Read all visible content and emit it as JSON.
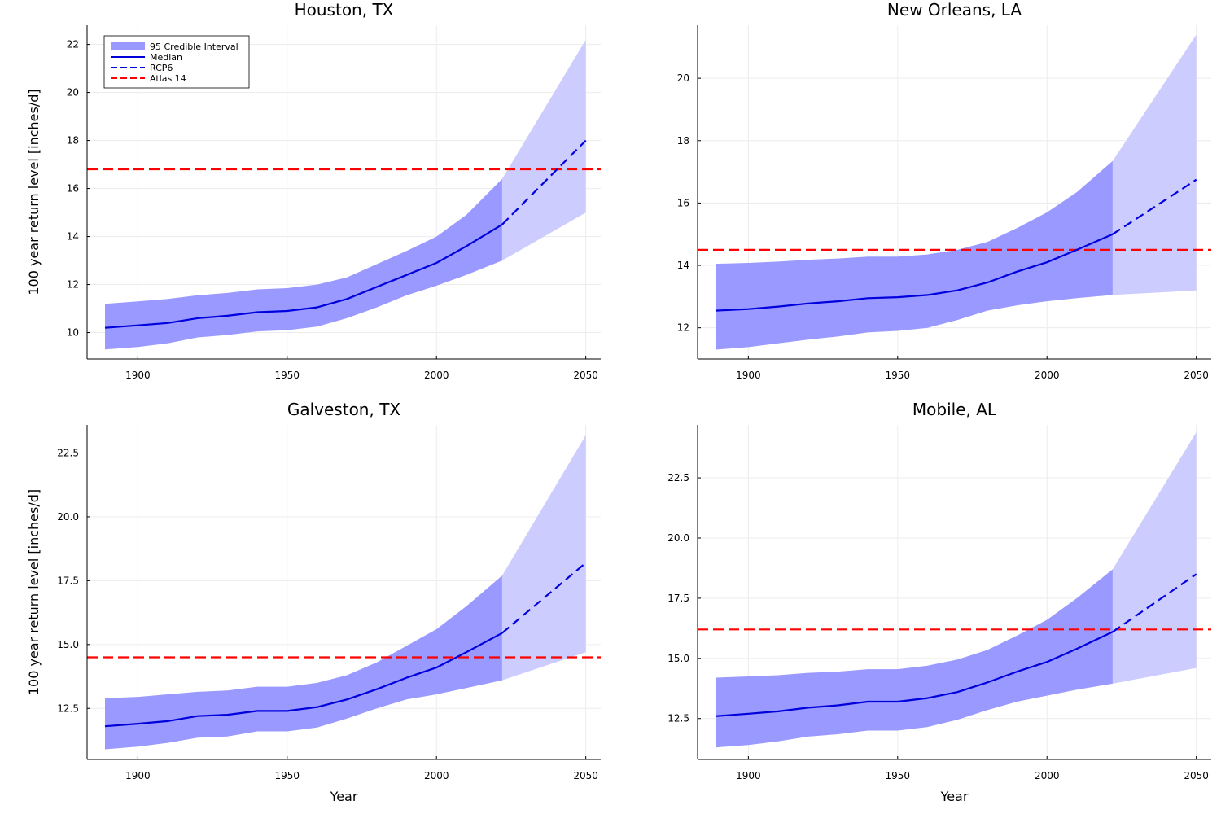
{
  "legend": {
    "entries": [
      "95 Credible Interval",
      "Median",
      "RCP6",
      "Atlas 14"
    ],
    "position": "top-left",
    "panel": 0
  },
  "colors": {
    "hist_band": "#9999ff",
    "proj_band": "#ccccff",
    "median": "#0000dd",
    "atlas": "#ff0000",
    "grid": "#ececec",
    "axis": "#000000"
  },
  "chart_data": [
    {
      "type": "area",
      "title": "Houston, TX",
      "xlabel": "",
      "ylabel": "100 year return level [inches/d]",
      "xlim": [
        1883,
        2055
      ],
      "ylim": [
        8.9,
        22.8
      ],
      "xticks": [
        1900,
        1950,
        2000,
        2050
      ],
      "yticks": [
        10,
        12,
        14,
        16,
        18,
        20,
        22
      ],
      "ytick_labels": [
        "10",
        "12",
        "14",
        "16",
        "18",
        "20",
        "22"
      ],
      "grid": true,
      "atlas14": 16.8,
      "historical": {
        "x": [
          1889,
          1900,
          1910,
          1920,
          1930,
          1940,
          1950,
          1960,
          1970,
          1980,
          1990,
          2000,
          2010,
          2022
        ],
        "median": [
          10.2,
          10.3,
          10.4,
          10.6,
          10.7,
          10.85,
          10.9,
          11.05,
          11.4,
          11.9,
          12.4,
          12.9,
          13.6,
          14.5
        ],
        "lower": [
          9.3,
          9.4,
          9.55,
          9.8,
          9.9,
          10.05,
          10.1,
          10.25,
          10.6,
          11.05,
          11.55,
          11.95,
          12.4,
          13.0
        ],
        "upper": [
          11.2,
          11.3,
          11.4,
          11.55,
          11.65,
          11.8,
          11.85,
          12.0,
          12.3,
          12.85,
          13.4,
          14.0,
          14.9,
          16.4
        ]
      },
      "projection": {
        "name": "RCP6",
        "x": [
          2022,
          2050
        ],
        "median": [
          14.5,
          18.0
        ],
        "lower": [
          13.0,
          15.0
        ],
        "upper": [
          16.4,
          22.2
        ]
      }
    },
    {
      "type": "area",
      "title": "New Orleans, LA",
      "xlabel": "",
      "ylabel": "",
      "xlim": [
        1883,
        2055
      ],
      "ylim": [
        11.0,
        21.7
      ],
      "xticks": [
        1900,
        1950,
        2000,
        2050
      ],
      "yticks": [
        12,
        14,
        16,
        18,
        20
      ],
      "ytick_labels": [
        "12",
        "14",
        "16",
        "18",
        "20"
      ],
      "grid": true,
      "atlas14": 14.5,
      "historical": {
        "x": [
          1889,
          1900,
          1910,
          1920,
          1930,
          1940,
          1950,
          1960,
          1970,
          1980,
          1990,
          2000,
          2010,
          2022
        ],
        "median": [
          12.55,
          12.6,
          12.68,
          12.78,
          12.85,
          12.95,
          12.98,
          13.05,
          13.2,
          13.45,
          13.8,
          14.1,
          14.5,
          15.0
        ],
        "lower": [
          11.3,
          11.38,
          11.5,
          11.62,
          11.72,
          11.85,
          11.9,
          12.0,
          12.25,
          12.55,
          12.72,
          12.85,
          12.95,
          13.05
        ],
        "upper": [
          14.05,
          14.08,
          14.12,
          14.18,
          14.22,
          14.28,
          14.28,
          14.35,
          14.5,
          14.75,
          15.2,
          15.7,
          16.35,
          17.35
        ]
      },
      "projection": {
        "name": "RCP6",
        "x": [
          2022,
          2050
        ],
        "median": [
          15.0,
          16.75
        ],
        "lower": [
          13.05,
          13.2
        ],
        "upper": [
          17.35,
          21.4
        ]
      }
    },
    {
      "type": "area",
      "title": "Galveston, TX",
      "xlabel": "Year",
      "ylabel": "100 year return level [inches/d]",
      "xlim": [
        1883,
        2055
      ],
      "ylim": [
        10.5,
        23.6
      ],
      "xticks": [
        1900,
        1950,
        2000,
        2050
      ],
      "yticks": [
        12.5,
        15,
        17.5,
        20,
        22.5
      ],
      "ytick_labels": [
        "12.5",
        "15.0",
        "17.5",
        "20.0",
        "22.5"
      ],
      "grid": true,
      "atlas14": 14.5,
      "historical": {
        "x": [
          1889,
          1900,
          1910,
          1920,
          1930,
          1940,
          1950,
          1960,
          1970,
          1980,
          1990,
          2000,
          2010,
          2022
        ],
        "median": [
          11.8,
          11.9,
          12.0,
          12.2,
          12.25,
          12.4,
          12.4,
          12.55,
          12.85,
          13.25,
          13.7,
          14.1,
          14.7,
          15.45
        ],
        "lower": [
          10.9,
          11.0,
          11.15,
          11.35,
          11.4,
          11.6,
          11.6,
          11.75,
          12.1,
          12.5,
          12.85,
          13.05,
          13.3,
          13.6
        ],
        "upper": [
          12.9,
          12.95,
          13.05,
          13.15,
          13.2,
          13.35,
          13.35,
          13.5,
          13.8,
          14.3,
          14.95,
          15.6,
          16.5,
          17.7
        ]
      },
      "projection": {
        "name": "RCP6",
        "x": [
          2022,
          2050
        ],
        "median": [
          15.45,
          18.2
        ],
        "lower": [
          13.6,
          14.7
        ],
        "upper": [
          17.7,
          23.2
        ]
      }
    },
    {
      "type": "area",
      "title": "Mobile, AL",
      "xlabel": "Year",
      "ylabel": "",
      "xlim": [
        1883,
        2055
      ],
      "ylim": [
        10.8,
        24.7
      ],
      "xticks": [
        1900,
        1950,
        2000,
        2050
      ],
      "yticks": [
        12.5,
        15,
        17.5,
        20,
        22.5
      ],
      "ytick_labels": [
        "12.5",
        "15.0",
        "17.5",
        "20.0",
        "22.5"
      ],
      "grid": true,
      "atlas14": 16.2,
      "historical": {
        "x": [
          1889,
          1900,
          1910,
          1920,
          1930,
          1940,
          1950,
          1960,
          1970,
          1980,
          1990,
          2000,
          2010,
          2022
        ],
        "median": [
          12.6,
          12.7,
          12.8,
          12.95,
          13.05,
          13.2,
          13.2,
          13.35,
          13.6,
          14.0,
          14.45,
          14.85,
          15.4,
          16.1
        ],
        "lower": [
          11.3,
          11.4,
          11.55,
          11.75,
          11.85,
          12.0,
          12.0,
          12.15,
          12.45,
          12.85,
          13.2,
          13.45,
          13.7,
          13.95
        ],
        "upper": [
          14.2,
          14.25,
          14.3,
          14.4,
          14.45,
          14.55,
          14.55,
          14.7,
          14.95,
          15.35,
          15.95,
          16.6,
          17.5,
          18.7
        ]
      },
      "projection": {
        "name": "RCP6",
        "x": [
          2022,
          2050
        ],
        "median": [
          16.1,
          18.5
        ],
        "lower": [
          13.95,
          14.6
        ],
        "upper": [
          18.7,
          24.4
        ]
      }
    }
  ]
}
